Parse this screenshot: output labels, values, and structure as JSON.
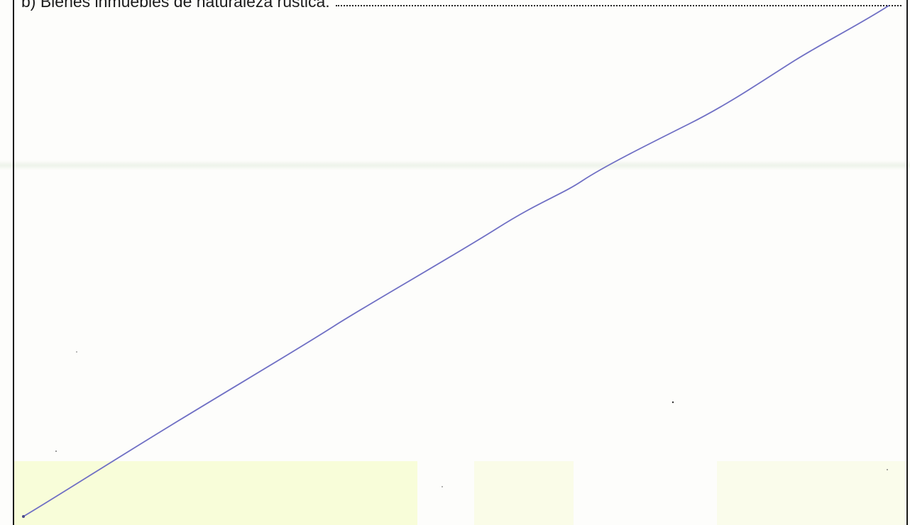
{
  "form": {
    "field_label": "b) Bienes inmuebles de naturaleza rústica:"
  },
  "colors": {
    "ink_line": "#6f6fc4",
    "border": "#1a1a1a",
    "paper": "#fdfdfb"
  }
}
